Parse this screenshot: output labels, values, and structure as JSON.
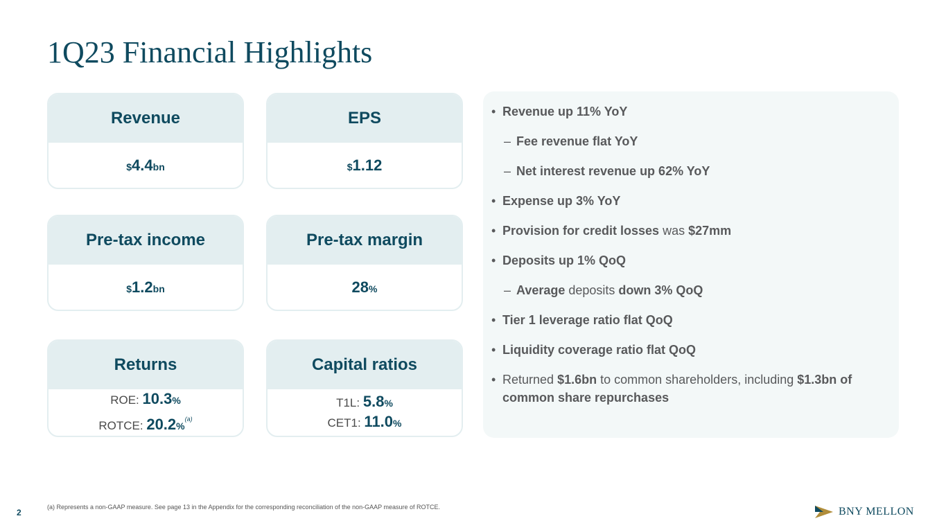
{
  "title": "1Q23 Financial Highlights",
  "cards": {
    "revenue": {
      "label": "Revenue",
      "prefix": "$",
      "value": "4.4",
      "suffix": "bn"
    },
    "eps": {
      "label": "EPS",
      "prefix": "$",
      "value": "1.12"
    },
    "pretax_income": {
      "label": "Pre-tax income",
      "prefix": "$",
      "value": "1.2",
      "suffix": "bn"
    },
    "pretax_margin": {
      "label": "Pre-tax margin",
      "value": "28",
      "suffix": "%"
    },
    "returns": {
      "label": "Returns",
      "roe_label": "ROE: ",
      "roe_value": "10.3",
      "roe_suffix": "%",
      "rotce_label": "ROTCE: ",
      "rotce_value": "20.2",
      "rotce_suffix": "%",
      "rotce_note": "(a)"
    },
    "capital": {
      "label": "Capital ratios",
      "t1l_label": "T1L: ",
      "t1l_value": "5.8",
      "t1l_suffix": "%",
      "cet1_label": "CET1: ",
      "cet1_value": "11.0",
      "cet1_suffix": "%"
    }
  },
  "bullets": {
    "b1": "Revenue up 11% YoY",
    "b1a": "Fee revenue flat YoY",
    "b1b": "Net interest revenue up 62% YoY",
    "b2": "Expense up 3% YoY",
    "b3_bold": "Provision for credit losses",
    "b3_mid": " was ",
    "b3_bold2": "$27mm",
    "b4": "Deposits up 1% QoQ",
    "b4a_bold": "Average",
    "b4a_mid": " deposits ",
    "b4a_bold2": "down 3% QoQ",
    "b5": "Tier 1 leverage ratio flat QoQ",
    "b6": "Liquidity coverage ratio flat QoQ",
    "b7_pre": "Returned ",
    "b7_bold": "$1.6bn",
    "b7_mid": " to common shareholders, including ",
    "b7_bold2": "$1.3bn of common share repurchases",
    "bullet_marker": "•",
    "dash_marker": "–"
  },
  "footnote": "(a) Represents a non-GAAP measure. See page 13 in the Appendix for the corresponding reconciliation of the non-GAAP measure of ROTCE.",
  "page_number": "2",
  "logo_text": "BNY MELLON",
  "colors": {
    "primary": "#0f4a5f",
    "card_header": "#e3eef0",
    "panel": "#f3f8f8",
    "gold": "#b08d3a"
  }
}
